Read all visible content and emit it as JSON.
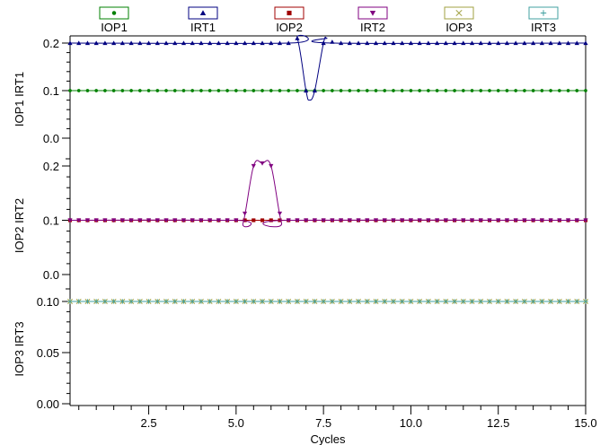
{
  "chart_data": {
    "type": "line",
    "xlabel": "Cycles",
    "xlim": [
      0.25,
      15.0
    ],
    "x_ticks": [
      "2.5",
      "5.0",
      "7.5",
      "10.0",
      "12.5",
      "15.0"
    ],
    "x_tick_values": [
      2.5,
      5.0,
      7.5,
      10.0,
      12.5,
      15.0
    ],
    "legend_position": "top",
    "panels": [
      {
        "ylabel": "IOP1 IRT1",
        "ylim": [
          0.0,
          0.2
        ],
        "y_ticks": [
          "0.0",
          "0.1",
          "0.2"
        ],
        "y_tick_values": [
          0.0,
          0.1,
          0.2
        ],
        "series": [
          {
            "name": "IOP1",
            "color": "#008000",
            "marker": "circle",
            "points": [
              [
                0.25,
                0.1
              ],
              [
                15.0,
                0.1
              ]
            ]
          },
          {
            "name": "IRT1",
            "color": "#000080",
            "marker": "triangle-up",
            "points": [
              [
                0.25,
                0.2
              ],
              [
                6.5,
                0.2
              ],
              [
                6.75,
                0.21
              ],
              [
                7.0,
                0.1
              ],
              [
                7.1,
                0.08
              ],
              [
                7.25,
                0.1
              ],
              [
                7.5,
                0.2
              ],
              [
                7.6,
                0.21
              ],
              [
                7.8,
                0.2
              ],
              [
                15.0,
                0.2
              ]
            ]
          }
        ]
      },
      {
        "ylabel": "IOP2 IRT2",
        "ylim": [
          0.0,
          0.2
        ],
        "y_ticks": [
          "0.0",
          "0.1",
          "0.2"
        ],
        "y_tick_values": [
          0.0,
          0.1,
          0.2
        ],
        "series": [
          {
            "name": "IOP2",
            "color": "#a00000",
            "marker": "square",
            "points": [
              [
                0.25,
                0.1
              ],
              [
                15.0,
                0.1
              ]
            ]
          },
          {
            "name": "IRT2",
            "color": "#800080",
            "marker": "triangle-down",
            "points": [
              [
                0.25,
                0.1
              ],
              [
                5.0,
                0.1
              ],
              [
                5.2,
                0.095
              ],
              [
                5.5,
                0.2
              ],
              [
                5.75,
                0.205
              ],
              [
                6.0,
                0.2
              ],
              [
                6.3,
                0.095
              ],
              [
                6.5,
                0.1
              ],
              [
                15.0,
                0.1
              ]
            ]
          }
        ]
      },
      {
        "ylabel": "IOP3 IRT3",
        "ylim": [
          0.0,
          0.1
        ],
        "y_ticks": [
          "0.00",
          "0.05",
          "0.10"
        ],
        "y_tick_values": [
          0.0,
          0.05,
          0.1
        ],
        "series": [
          {
            "name": "IOP3",
            "color": "#a0a040",
            "marker": "x",
            "points": [
              [
                0.25,
                0.1
              ],
              [
                15.0,
                0.1
              ]
            ]
          },
          {
            "name": "IRT3",
            "color": "#40a0a0",
            "marker": "plus",
            "points": [
              [
                0.25,
                0.1
              ],
              [
                15.0,
                0.1
              ]
            ]
          }
        ]
      }
    ],
    "legend": [
      {
        "name": "IOP1",
        "color": "#008000",
        "marker": "circle"
      },
      {
        "name": "IRT1",
        "color": "#000080",
        "marker": "triangle-up"
      },
      {
        "name": "IOP2",
        "color": "#a00000",
        "marker": "square"
      },
      {
        "name": "IRT2",
        "color": "#800080",
        "marker": "triangle-down"
      },
      {
        "name": "IOP3",
        "color": "#a0a040",
        "marker": "x"
      },
      {
        "name": "IRT3",
        "color": "#40a0a0",
        "marker": "plus"
      }
    ]
  }
}
